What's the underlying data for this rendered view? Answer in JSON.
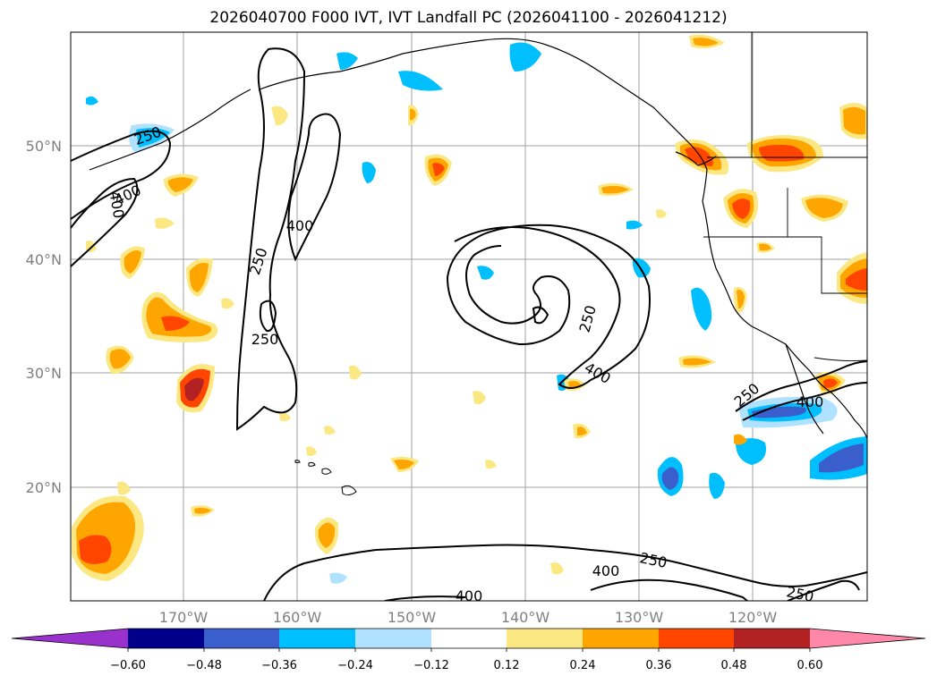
{
  "title": "2026040700 F000 IVT, IVT Landfall PC (2026041100 - 2026041212)",
  "map": {
    "projection": "PlateCarree",
    "lon_range": [
      180,
      110
    ],
    "lat_range": [
      10,
      60
    ],
    "lat_labels": [
      "20°N",
      "30°N",
      "40°N",
      "50°N"
    ],
    "lon_labels": [
      "170°W",
      "160°W",
      "150°W",
      "140°W",
      "130°W",
      "120°W"
    ],
    "contour_levels": [
      250,
      400
    ],
    "contour_labels": [
      "250",
      "400",
      "400",
      "250",
      "400",
      "250",
      "400",
      "250",
      "400",
      "250",
      "400",
      "400",
      "250",
      "250"
    ]
  },
  "colorbar": {
    "ticks": [
      "−0.60",
      "−0.48",
      "−0.36",
      "−0.24",
      "−0.12",
      "0.12",
      "0.24",
      "0.36",
      "0.48",
      "0.60"
    ],
    "colors": [
      "#9932cc",
      "#00008b",
      "#3a5fcd",
      "#00bfff",
      "#b0e2ff",
      "#ffffff",
      "#fce883",
      "#ffa500",
      "#ff4500",
      "#b22222",
      "#ff88aa"
    ]
  }
}
